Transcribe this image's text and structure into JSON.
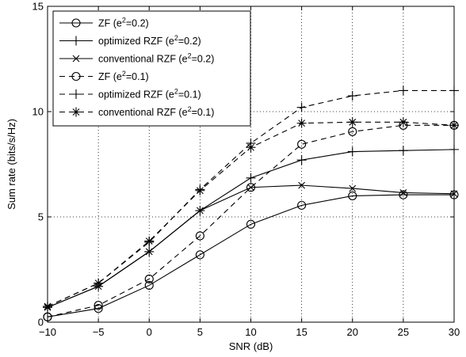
{
  "chart_data": {
    "type": "line",
    "xlabel": "SNR (dB)",
    "ylabel": "Sum rate (bits/s/Hz)",
    "xlim": [
      -10,
      30
    ],
    "ylim": [
      0,
      15
    ],
    "x_ticks": [
      -10,
      -5,
      0,
      5,
      10,
      15,
      20,
      25,
      30
    ],
    "y_ticks": [
      0,
      5,
      10,
      15
    ],
    "x": [
      -10,
      -5,
      0,
      5,
      10,
      15,
      20,
      25,
      30
    ],
    "grid": true,
    "legend_position": "top-left",
    "series": [
      {
        "name": "ZF (e^2=0.2)",
        "label_base": "ZF (e",
        "label_tail": "=0.2)",
        "style": "solid",
        "marker": "circle",
        "values": [
          0.25,
          0.65,
          1.75,
          3.2,
          4.65,
          5.55,
          6.0,
          6.05,
          6.05
        ]
      },
      {
        "name": "optimized RZF (e^2=0.2)",
        "label_base": "optimized RZF (e",
        "label_tail": "=0.2)",
        "style": "solid",
        "marker": "plus",
        "values": [
          0.7,
          1.7,
          3.35,
          5.3,
          6.85,
          7.7,
          8.1,
          8.15,
          8.2
        ]
      },
      {
        "name": "conventional RZF (e^2=0.2)",
        "label_base": "conventional RZF (e",
        "label_tail": "=0.2)",
        "style": "solid",
        "marker": "x",
        "values": [
          0.7,
          1.7,
          3.35,
          5.3,
          6.4,
          6.5,
          6.35,
          6.15,
          6.1
        ]
      },
      {
        "name": "ZF (e^2=0.1)",
        "label_base": "ZF (e",
        "label_tail": "=0.1)",
        "style": "dashed",
        "marker": "circle",
        "values": [
          0.25,
          0.8,
          2.05,
          4.1,
          6.4,
          8.45,
          9.05,
          9.35,
          9.35
        ]
      },
      {
        "name": "optimized RZF (e^2=0.1)",
        "label_base": "optimized RZF (e",
        "label_tail": "=0.1)",
        "style": "dashed",
        "marker": "plus",
        "values": [
          0.75,
          1.85,
          3.8,
          6.3,
          8.5,
          10.2,
          10.75,
          11.0,
          11.0
        ]
      },
      {
        "name": "conventional RZF (e^2=0.1)",
        "label_base": "conventional RZF (e",
        "label_tail": "=0.1)",
        "style": "dashed",
        "marker": "star",
        "values": [
          0.75,
          1.85,
          3.85,
          6.25,
          8.3,
          9.45,
          9.5,
          9.5,
          9.35
        ]
      }
    ],
    "colors": {
      "line": "#000000",
      "grid": "#000000",
      "background": "#ffffff"
    }
  }
}
